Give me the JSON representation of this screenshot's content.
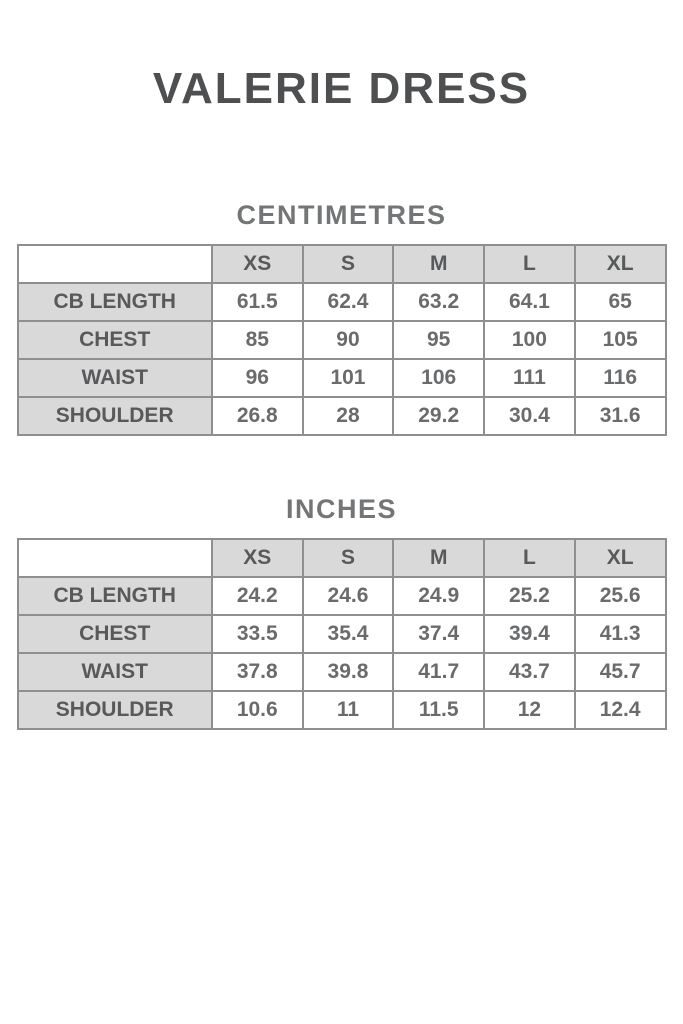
{
  "page": {
    "title": "VALERIE DRESS"
  },
  "colors": {
    "title_text": "#4d4f51",
    "heading_text": "#737577",
    "cell_header_background": "#d9d9d9",
    "cell_header_text": "#58595b",
    "cell_value_text": "#6a6b6d",
    "table_border": "#8e8f91",
    "page_background": "#ffffff"
  },
  "sections": [
    {
      "heading": "CENTIMETRES",
      "columns": [
        "XS",
        "S",
        "M",
        "L",
        "XL"
      ],
      "rows": [
        {
          "label": "CB LENGTH",
          "values": [
            "61.5",
            "62.4",
            "63.2",
            "64.1",
            "65"
          ]
        },
        {
          "label": "CHEST",
          "values": [
            "85",
            "90",
            "95",
            "100",
            "105"
          ]
        },
        {
          "label": "WAIST",
          "values": [
            "96",
            "101",
            "106",
            "111",
            "116"
          ]
        },
        {
          "label": "SHOULDER",
          "values": [
            "26.8",
            "28",
            "29.2",
            "30.4",
            "31.6"
          ]
        }
      ]
    },
    {
      "heading": "INCHES",
      "columns": [
        "XS",
        "S",
        "M",
        "L",
        "XL"
      ],
      "rows": [
        {
          "label": "CB LENGTH",
          "values": [
            "24.2",
            "24.6",
            "24.9",
            "25.2",
            "25.6"
          ]
        },
        {
          "label": "CHEST",
          "values": [
            "33.5",
            "35.4",
            "37.4",
            "39.4",
            "41.3"
          ]
        },
        {
          "label": "WAIST",
          "values": [
            "37.8",
            "39.8",
            "41.7",
            "43.7",
            "45.7"
          ]
        },
        {
          "label": "SHOULDER",
          "values": [
            "10.6",
            "11",
            "11.5",
            "12",
            "12.4"
          ]
        }
      ]
    }
  ]
}
